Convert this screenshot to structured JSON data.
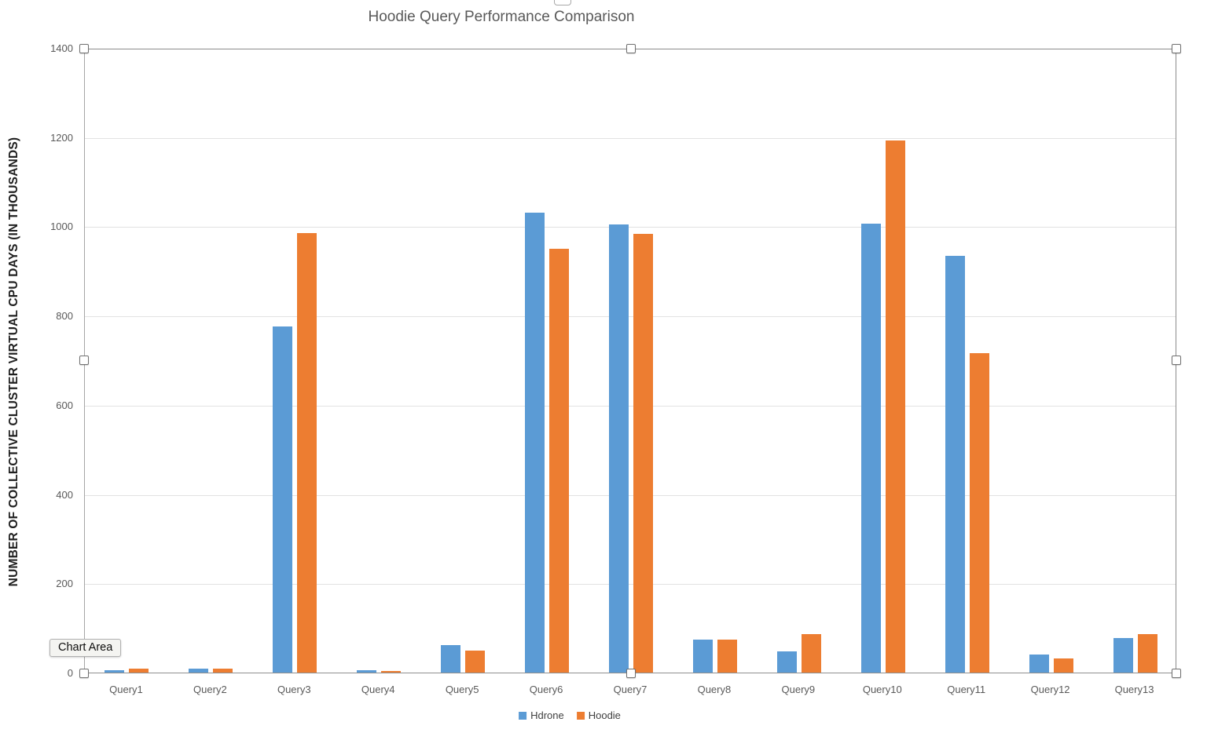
{
  "chart_data": {
    "type": "bar",
    "title": "Hoodie Query Performance Comparison",
    "xlabel": "",
    "ylabel": "NUMBER OF COLLECTIVE CLUSTER VIRTUAL CPU DAYS (IN THOUSANDS)",
    "categories": [
      "Query1",
      "Query2",
      "Query3",
      "Query4",
      "Query5",
      "Query6",
      "Query7",
      "Query8",
      "Query9",
      "Query10",
      "Query11",
      "Query12",
      "Query13"
    ],
    "series": [
      {
        "name": "Hdrone",
        "color": "#5B9BD5",
        "values": [
          6,
          9,
          775,
          5,
          62,
          1030,
          1004,
          74,
          48,
          1006,
          934,
          40,
          77
        ]
      },
      {
        "name": "Hoodie",
        "color": "#ED7D31",
        "values": [
          9,
          9,
          985,
          4,
          50,
          949,
          984,
          74,
          86,
          1192,
          716,
          32,
          87
        ]
      }
    ],
    "ylim": [
      0,
      1400
    ],
    "ytick_step": 200,
    "grid": true,
    "legend_position": "bottom"
  },
  "tooltip": {
    "label": "Chart Area"
  },
  "selection": {
    "handle_color": "#ffffff",
    "handle_border": "#707070"
  }
}
